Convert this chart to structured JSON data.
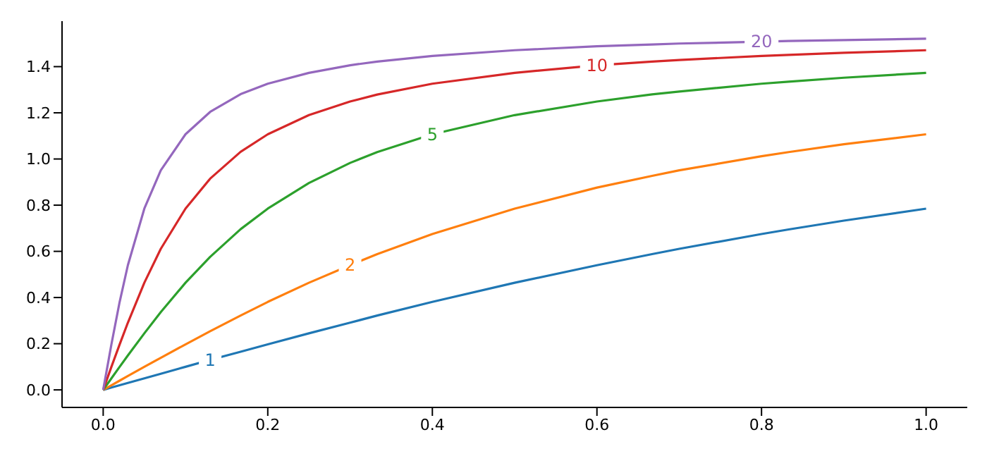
{
  "chart_data": {
    "type": "line",
    "x": [
      0,
      0.01,
      0.02,
      0.03,
      0.05,
      0.07,
      0.1,
      0.13,
      0.167,
      0.2,
      0.25,
      0.3,
      0.333,
      0.4,
      0.5,
      0.6,
      0.667,
      0.7,
      0.8,
      0.833,
      0.9,
      1.0
    ],
    "series": [
      {
        "name": "1",
        "color": "#1f77b4",
        "values": [
          0,
          0.01,
          0.02,
          0.03,
          0.05,
          0.07,
          0.1,
          0.13,
          0.165,
          0.197,
          0.245,
          0.291,
          0.322,
          0.381,
          0.464,
          0.54,
          0.588,
          0.611,
          0.675,
          0.695,
          0.733,
          0.785
        ]
      },
      {
        "name": "2",
        "color": "#ff7f0e",
        "values": [
          0,
          0.02,
          0.04,
          0.06,
          0.1,
          0.139,
          0.197,
          0.254,
          0.322,
          0.381,
          0.464,
          0.54,
          0.588,
          0.675,
          0.785,
          0.876,
          0.927,
          0.951,
          1.012,
          1.03,
          1.064,
          1.107
        ]
      },
      {
        "name": "5",
        "color": "#2ca02c",
        "values": [
          0,
          0.05,
          0.1,
          0.149,
          0.245,
          0.337,
          0.464,
          0.576,
          0.696,
          0.785,
          0.896,
          0.983,
          1.03,
          1.107,
          1.19,
          1.249,
          1.28,
          1.292,
          1.326,
          1.335,
          1.352,
          1.373
        ]
      },
      {
        "name": "10",
        "color": "#d62728",
        "values": [
          0,
          0.1,
          0.197,
          0.291,
          0.464,
          0.611,
          0.785,
          0.915,
          1.031,
          1.107,
          1.19,
          1.249,
          1.279,
          1.326,
          1.373,
          1.406,
          1.422,
          1.429,
          1.446,
          1.451,
          1.46,
          1.471
        ]
      },
      {
        "name": "20",
        "color": "#9467bd",
        "values": [
          0,
          0.197,
          0.381,
          0.54,
          0.785,
          0.951,
          1.107,
          1.204,
          1.281,
          1.326,
          1.373,
          1.406,
          1.422,
          1.446,
          1.471,
          1.488,
          1.496,
          1.5,
          1.508,
          1.511,
          1.515,
          1.521
        ]
      }
    ],
    "xlim": [
      -0.05,
      1.05
    ],
    "ylim": [
      -0.076,
      1.597
    ],
    "xticks": [
      {
        "value": 0,
        "label": "0.0"
      },
      {
        "value": 0.2,
        "label": "0.2"
      },
      {
        "value": 0.4,
        "label": "0.4"
      },
      {
        "value": 0.6,
        "label": "0.6"
      },
      {
        "value": 0.8,
        "label": "0.8"
      },
      {
        "value": 1,
        "label": "1.0"
      }
    ],
    "yticks": [
      {
        "value": 0,
        "label": "0.0"
      },
      {
        "value": 0.2,
        "label": "0.2"
      },
      {
        "value": 0.4,
        "label": "0.4"
      },
      {
        "value": 0.6,
        "label": "0.6"
      },
      {
        "value": 0.8,
        "label": "0.8"
      },
      {
        "value": 1,
        "label": "1.0"
      },
      {
        "value": 1.2,
        "label": "1.2"
      },
      {
        "value": 1.4,
        "label": "1.4"
      }
    ],
    "grid": false,
    "legend": false,
    "marker": "none",
    "line_style": "solid"
  }
}
